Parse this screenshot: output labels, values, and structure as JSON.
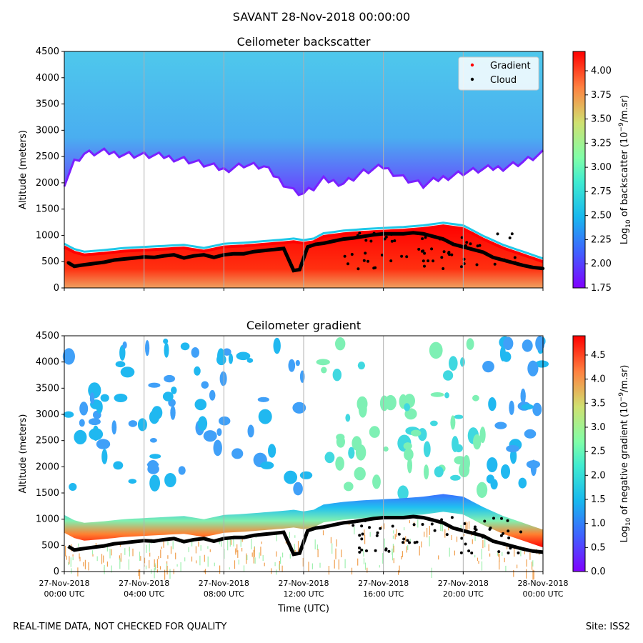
{
  "figure": {
    "suptitle": "SAVANT 28-Nov-2018 00:00:00",
    "footer_left": "REAL-TIME DATA, NOT CHECKED FOR QUALITY",
    "footer_right": "Site: ISS2"
  },
  "chart_data": [
    {
      "type": "heatmap",
      "title": "Ceilometer backscatter",
      "xlabel": "",
      "ylabel": "Altitude (meters)",
      "ylim": [
        0,
        4500
      ],
      "yticks": [
        "0",
        "500",
        "1000",
        "1500",
        "2000",
        "2500",
        "3000",
        "3500",
        "4000",
        "4500"
      ],
      "xlim_hours": [
        0,
        24
      ],
      "x_gridlines_hours": [
        4,
        8,
        12,
        16,
        20
      ],
      "colorbar": {
        "label_pre": "Log",
        "label_sub": "10",
        "label_mid": " of backscatter (10",
        "label_sup": "−9",
        "label_post": "/m.sr)",
        "range": [
          1.75,
          4.2
        ],
        "ticks": [
          "1.75",
          "2.00",
          "2.25",
          "2.50",
          "2.75",
          "3.00",
          "3.25",
          "3.50",
          "3.75",
          "4.00"
        ]
      },
      "legend": {
        "position": "top-right",
        "entries": [
          {
            "label": "Gradient",
            "color": "#ff0000"
          },
          {
            "label": "Cloud",
            "color": "#000000"
          }
        ]
      },
      "upper_layer_lower_edge_m": {
        "hours": [
          0,
          0.5,
          1,
          2,
          3,
          4,
          5,
          6,
          7,
          8,
          9,
          10,
          11,
          11.5,
          12,
          12.5,
          13,
          14,
          15,
          16,
          17,
          18,
          19,
          20,
          21,
          22,
          23,
          24
        ],
        "values": [
          2000,
          2400,
          2550,
          2580,
          2550,
          2520,
          2500,
          2450,
          2350,
          2250,
          2350,
          2300,
          2000,
          1850,
          1800,
          1900,
          2050,
          2000,
          2200,
          2300,
          2100,
          1950,
          2100,
          2200,
          2250,
          2300,
          2400,
          2550
        ]
      }
    },
    {
      "type": "heatmap",
      "title": "Ceilometer gradient",
      "xlabel": "Time (UTC)",
      "ylabel": "Altitude (meters)",
      "ylim": [
        0,
        4500
      ],
      "yticks": [
        "0",
        "500",
        "1000",
        "1500",
        "2000",
        "2500",
        "3000",
        "3500",
        "4000",
        "4500"
      ],
      "xticks": [
        {
          "hours": 0,
          "date": "27-Nov-2018",
          "time": "00:00 UTC"
        },
        {
          "hours": 4,
          "date": "27-Nov-2018",
          "time": "04:00 UTC"
        },
        {
          "hours": 8,
          "date": "27-Nov-2018",
          "time": "08:00 UTC"
        },
        {
          "hours": 12,
          "date": "27-Nov-2018",
          "time": "12:00 UTC"
        },
        {
          "hours": 16,
          "date": "27-Nov-2018",
          "time": "16:00 UTC"
        },
        {
          "hours": 20,
          "date": "27-Nov-2018",
          "time": "20:00 UTC"
        },
        {
          "hours": 24,
          "date": "28-Nov-2018",
          "time": "00:00 UTC"
        }
      ],
      "colorbar": {
        "label_pre": "Log",
        "label_sub": "10",
        "label_mid": " of negative gradient (10",
        "label_sup": "−9",
        "label_post": "/m.sr)",
        "range": [
          0.0,
          4.9
        ],
        "ticks": [
          "0.0",
          "0.5",
          "1.0",
          "1.5",
          "2.0",
          "2.5",
          "3.0",
          "3.5",
          "4.0",
          "4.5"
        ]
      }
    }
  ],
  "series": {
    "boundary_layer_top_m": {
      "hours": [
        0,
        0.5,
        1,
        2,
        3,
        4,
        5,
        6,
        7,
        8,
        9,
        10,
        11,
        11.5,
        12,
        12.5,
        13,
        14,
        15,
        16,
        17,
        18,
        19,
        20,
        21,
        22,
        23,
        24
      ],
      "values": [
        800,
        700,
        650,
        680,
        720,
        740,
        760,
        780,
        720,
        800,
        820,
        850,
        880,
        900,
        870,
        900,
        1000,
        1050,
        1080,
        1100,
        1120,
        1150,
        1200,
        1150,
        950,
        780,
        650,
        520
      ]
    },
    "cloud_points": {
      "hours": [
        0.2,
        0.5,
        0.8,
        1.2,
        1.6,
        2.0,
        2.5,
        3.0,
        3.5,
        4.0,
        4.5,
        5.0,
        5.5,
        6.0,
        6.5,
        7.0,
        7.5,
        8.0,
        8.5,
        9.0,
        9.5,
        10.0,
        10.5,
        11.0,
        11.5,
        11.8,
        12.2,
        12.6,
        13.0,
        13.5,
        14.0,
        14.5,
        15.0,
        15.5,
        16.0,
        16.5,
        17.0,
        17.5,
        18.0,
        18.5,
        19.0,
        19.5,
        20.0,
        20.5,
        21.0,
        21.5,
        22.0,
        22.5,
        23.0,
        23.5,
        24.0
      ],
      "values": [
        550,
        480,
        500,
        520,
        540,
        560,
        600,
        620,
        640,
        660,
        650,
        680,
        700,
        640,
        680,
        700,
        650,
        700,
        720,
        720,
        760,
        780,
        800,
        820,
        400,
        420,
        850,
        900,
        920,
        960,
        1000,
        1020,
        1050,
        1080,
        1100,
        1100,
        1100,
        1120,
        1100,
        1050,
        1000,
        900,
        850,
        800,
        750,
        650,
        600,
        550,
        500,
        460,
        440
      ]
    }
  }
}
